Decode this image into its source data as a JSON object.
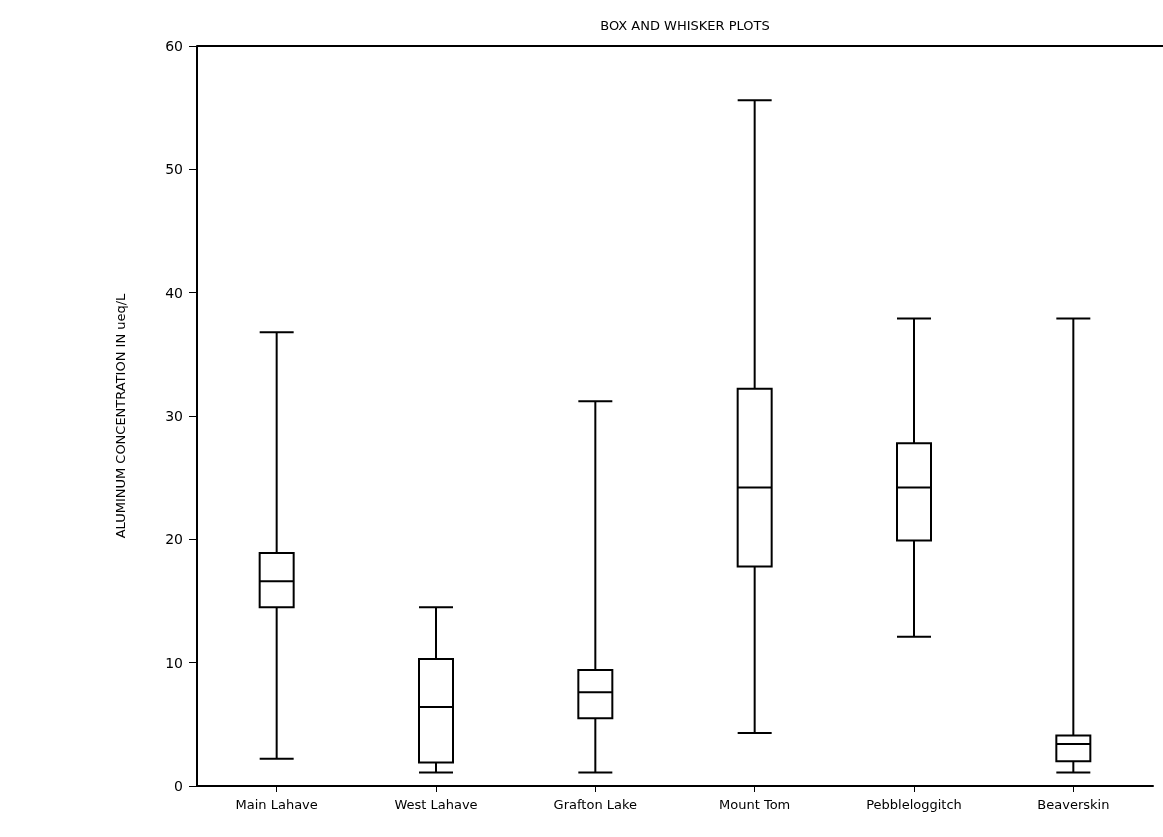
{
  "chart_data": {
    "type": "box",
    "title": "BOX AND WHISKER PLOTS",
    "ylabel": "ALUMINUM CONCENTRATION IN ueq/L",
    "categories": [
      "Main Lahave",
      "West Lahave",
      "Grafton Lake",
      "Mount Tom",
      "Pebbleloggitch",
      "Beaverskin"
    ],
    "series": [
      {
        "color": "#000000",
        "boxes": [
          {
            "low": 2.2,
            "q1": 14.5,
            "median": 16.6,
            "q3": 18.9,
            "high": 36.8
          },
          {
            "low": 1.1,
            "q1": 1.9,
            "median": 6.4,
            "q3": 10.3,
            "high": 14.5
          },
          {
            "low": 1.1,
            "q1": 5.5,
            "median": 7.6,
            "q3": 9.4,
            "high": 31.2
          },
          {
            "low": 4.3,
            "q1": 17.8,
            "median": 24.2,
            "q3": 32.2,
            "high": 55.6
          },
          {
            "low": 12.1,
            "q1": 19.9,
            "median": 24.2,
            "q3": 27.8,
            "high": 37.9
          },
          {
            "low": 1.1,
            "q1": 2.0,
            "median": 3.4,
            "q3": 4.1,
            "high": 37.9
          }
        ]
      }
    ],
    "ylim": [
      0,
      60
    ],
    "yticks": [
      0,
      10,
      20,
      30,
      40,
      50,
      60
    ],
    "grid": false
  }
}
